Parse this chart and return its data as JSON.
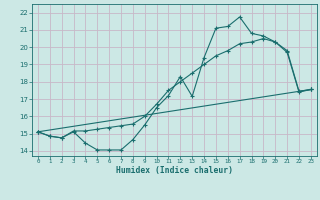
{
  "xlabel": "Humidex (Indice chaleur)",
  "bg_color": "#cce8e5",
  "grid_color": "#c8b8c8",
  "line_color": "#1a6e6e",
  "xlim": [
    -0.5,
    23.5
  ],
  "ylim": [
    13.7,
    22.5
  ],
  "xticks": [
    0,
    1,
    2,
    3,
    4,
    5,
    6,
    7,
    8,
    9,
    10,
    11,
    12,
    13,
    14,
    15,
    16,
    17,
    18,
    19,
    20,
    21,
    22,
    23
  ],
  "yticks": [
    14,
    15,
    16,
    17,
    18,
    19,
    20,
    21,
    22
  ],
  "line1_x": [
    0,
    1,
    2,
    3,
    4,
    5,
    6,
    7,
    8,
    9,
    10,
    11,
    12,
    13,
    14,
    15,
    16,
    17,
    18,
    19,
    20,
    21,
    22,
    23
  ],
  "line1_y": [
    15.1,
    14.85,
    14.75,
    15.1,
    14.45,
    14.05,
    14.05,
    14.05,
    14.65,
    15.5,
    16.5,
    17.2,
    18.3,
    17.15,
    19.4,
    21.1,
    21.2,
    21.75,
    20.8,
    20.65,
    20.3,
    19.7,
    17.4,
    17.55
  ],
  "line2_x": [
    0,
    1,
    2,
    3,
    4,
    5,
    6,
    7,
    8,
    9,
    10,
    11,
    12,
    13,
    14,
    15,
    16,
    17,
    18,
    19,
    20,
    21,
    22,
    23
  ],
  "line2_y": [
    15.1,
    14.85,
    14.75,
    15.15,
    15.15,
    15.25,
    15.35,
    15.45,
    15.55,
    16.0,
    16.7,
    17.5,
    18.0,
    18.5,
    19.0,
    19.5,
    19.8,
    20.2,
    20.3,
    20.5,
    20.3,
    19.8,
    17.45,
    17.55
  ],
  "line3_x": [
    0,
    23
  ],
  "line3_y": [
    15.1,
    17.55
  ]
}
